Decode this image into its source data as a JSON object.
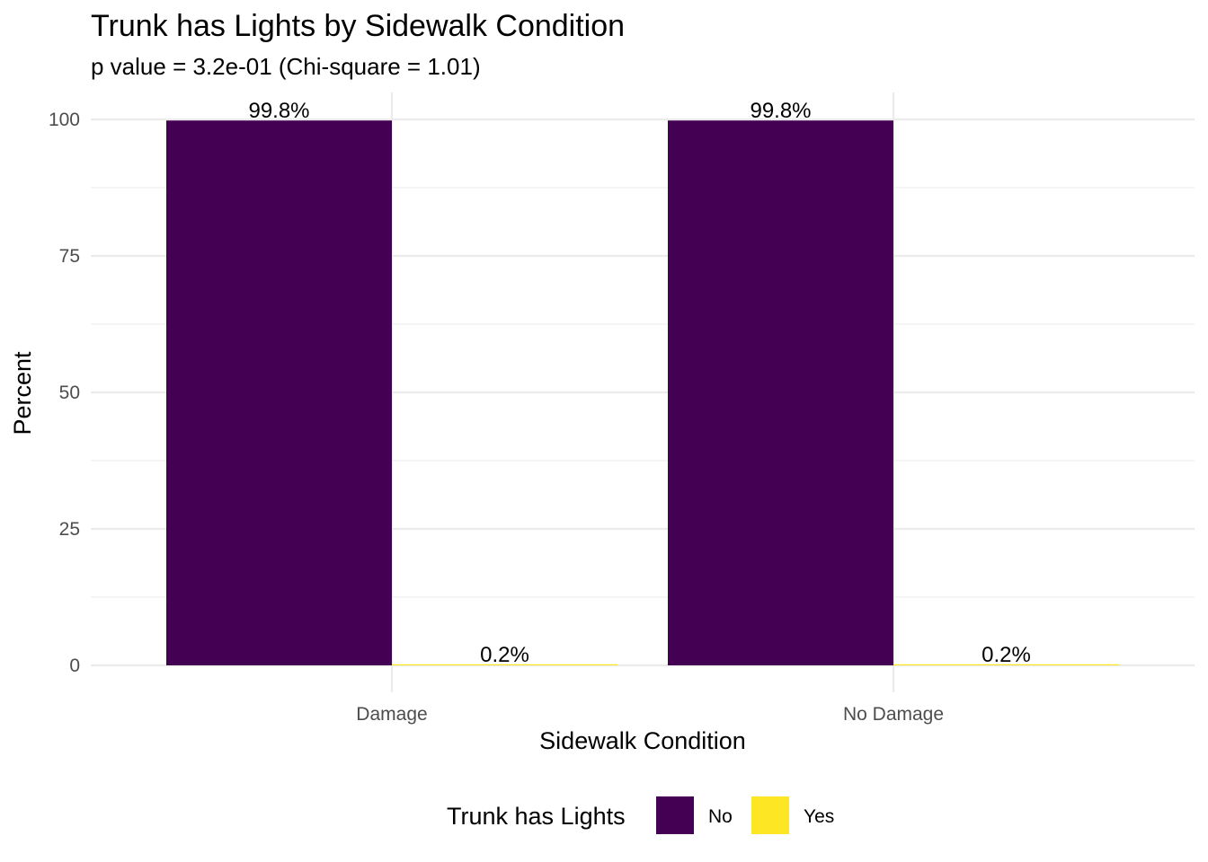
{
  "chart_data": {
    "type": "bar",
    "title": "Trunk has Lights by Sidewalk Condition",
    "subtitle": "p value = 3.2e-01 (Chi-square = 1.01)",
    "xlabel": "Sidewalk Condition",
    "ylabel": "Percent",
    "categories": [
      "Damage",
      "No Damage"
    ],
    "series": [
      {
        "name": "No",
        "color": "#440154",
        "values": [
          99.8,
          99.8
        ],
        "labels": [
          "99.8%",
          "99.8%"
        ]
      },
      {
        "name": "Yes",
        "color": "#FDE725",
        "values": [
          0.2,
          0.2
        ],
        "labels": [
          "0.2%",
          "0.2%"
        ]
      }
    ],
    "ylim": [
      0,
      105
    ],
    "yticks": [
      0,
      25,
      50,
      75,
      100
    ],
    "ytick_labels": [
      "0",
      "25",
      "50",
      "75",
      "100"
    ],
    "grid": true,
    "legend": {
      "title": "Trunk has Lights",
      "position": "bottom"
    }
  }
}
